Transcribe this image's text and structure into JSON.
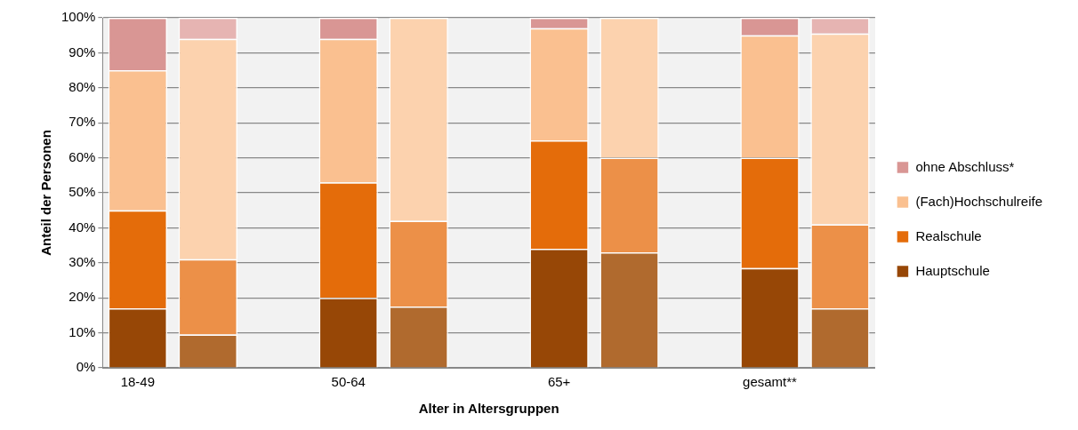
{
  "chart_data": {
    "type": "bar",
    "stacked": true,
    "xlabel": "Alter in Altersgruppen",
    "ylabel": "Anteil der Personen",
    "categories": [
      "18-49",
      null,
      null,
      "50-64",
      null,
      null,
      "65+",
      null,
      null,
      "gesamt**",
      null
    ],
    "series": [
      {
        "name": "Hauptschule",
        "color": "#974706",
        "values": [
          17,
          null,
          null,
          20,
          null,
          null,
          34,
          null,
          null,
          28.5,
          null
        ]
      },
      {
        "name": "Realschule",
        "color": "#e46c0a",
        "values": [
          28,
          null,
          null,
          33,
          null,
          null,
          31,
          null,
          null,
          31.5,
          null
        ]
      },
      {
        "name": "(Fach)Hochschulreife",
        "color": "#fac090",
        "values": [
          40,
          null,
          null,
          41,
          null,
          null,
          32,
          null,
          null,
          35,
          null
        ]
      },
      {
        "name": "ohne Abschluss*",
        "color": "#d99694",
        "values": [
          15,
          null,
          null,
          6,
          null,
          null,
          3,
          null,
          null,
          5,
          null
        ]
      },
      {
        "color": "#b06a2e",
        "values": [
          null,
          9.5,
          null,
          null,
          17.5,
          null,
          null,
          33,
          null,
          null,
          17
        ]
      },
      {
        "color": "#ec9048",
        "values": [
          null,
          21.5,
          null,
          null,
          24.5,
          null,
          null,
          27,
          null,
          null,
          24
        ]
      },
      {
        "color": "#fcd2ae",
        "values": [
          null,
          63,
          null,
          null,
          58,
          null,
          null,
          40,
          null,
          null,
          54.5
        ]
      },
      {
        "color": "#e6b4b2",
        "values": [
          null,
          6,
          null,
          null,
          0,
          null,
          null,
          0,
          null,
          null,
          4.5
        ]
      }
    ],
    "ylim": [
      0,
      100
    ],
    "yticks": [
      {
        "value": 0,
        "label": "0%"
      },
      {
        "value": 10,
        "label": "10%"
      },
      {
        "value": 20,
        "label": "20%"
      },
      {
        "value": 30,
        "label": "30%"
      },
      {
        "value": 40,
        "label": "40%"
      },
      {
        "value": 50,
        "label": "50%"
      },
      {
        "value": 60,
        "label": "60%"
      },
      {
        "value": 70,
        "label": "70%"
      },
      {
        "value": 80,
        "label": "80%"
      },
      {
        "value": 90,
        "label": "90%"
      },
      {
        "value": 100,
        "label": "100%"
      }
    ],
    "grid": "y",
    "legend": "right"
  }
}
